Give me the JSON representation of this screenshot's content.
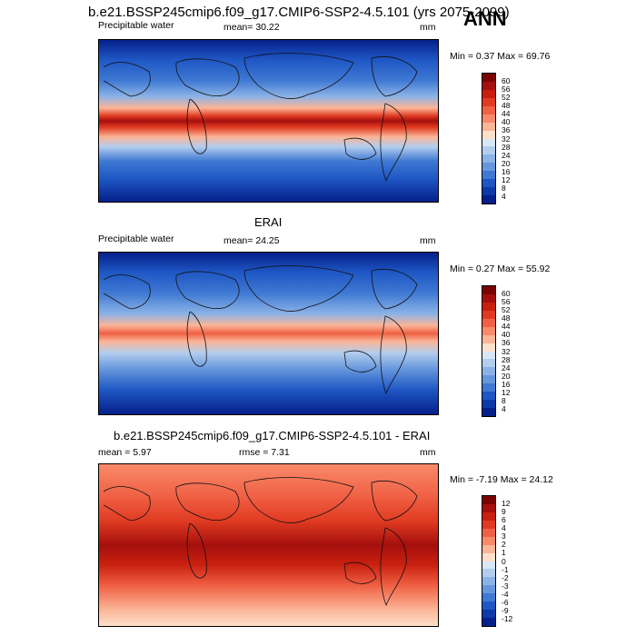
{
  "header": {
    "case_title": "b.e21.BSSP245cmip6.f09_g17.CMIP6-SSP2-4.5.101 (yrs 2075-2099)",
    "season": "ANN"
  },
  "panels": [
    {
      "title": "",
      "left_label": "Precipitable water",
      "center_label": "mean=  30.22",
      "units": "mm",
      "minmax": "Min =   0.37 Max =  69.76",
      "colorbar": {
        "labels": [
          "60",
          "56",
          "52",
          "48",
          "44",
          "40",
          "36",
          "32",
          "28",
          "24",
          "20",
          "16",
          "12",
          "8",
          "4"
        ],
        "colors": [
          "#7a0403",
          "#a50f0d",
          "#c8200f",
          "#e03b22",
          "#f06044",
          "#f88a6a",
          "#fbb597",
          "#fde0cb",
          "#d9e6f5",
          "#b3cdee",
          "#8cb3e6",
          "#6697dd",
          "#3f79d3",
          "#1e56c4",
          "#0c3aa8",
          "#05208a"
        ]
      }
    },
    {
      "title": "ERAI",
      "left_label": "Precipitable water",
      "center_label": "mean=  24.25",
      "units": "mm",
      "minmax": "Min =   0.27 Max =  55.92",
      "colorbar": {
        "labels": [
          "60",
          "56",
          "52",
          "48",
          "44",
          "40",
          "36",
          "32",
          "28",
          "24",
          "20",
          "16",
          "12",
          "8",
          "4"
        ],
        "colors": [
          "#7a0403",
          "#a50f0d",
          "#c8200f",
          "#e03b22",
          "#f06044",
          "#f88a6a",
          "#fbb597",
          "#fde0cb",
          "#d9e6f5",
          "#b3cdee",
          "#8cb3e6",
          "#6697dd",
          "#3f79d3",
          "#1e56c4",
          "#0c3aa8",
          "#05208a"
        ]
      }
    },
    {
      "title": "b.e21.BSSP245cmip6.f09_g17.CMIP6-SSP2-4.5.101 - ERAI",
      "left_label": "mean =   5.97",
      "center_label": "rmse =   7.31",
      "units": "mm",
      "minmax": "Min =  -7.19 Max =  24.12",
      "colorbar": {
        "labels": [
          "12",
          "9",
          "6",
          "4",
          "3",
          "2",
          "1",
          "0",
          "-1",
          "-2",
          "-3",
          "-4",
          "-6",
          "-9",
          "-12"
        ],
        "colors": [
          "#7a0403",
          "#a50f0d",
          "#c8200f",
          "#e03b22",
          "#f06044",
          "#f88a6a",
          "#fbb597",
          "#fde0cb",
          "#d9e6f5",
          "#b3cdee",
          "#8cb3e6",
          "#6697dd",
          "#3f79d3",
          "#1e56c4",
          "#0c3aa8",
          "#05208a"
        ]
      }
    }
  ]
}
